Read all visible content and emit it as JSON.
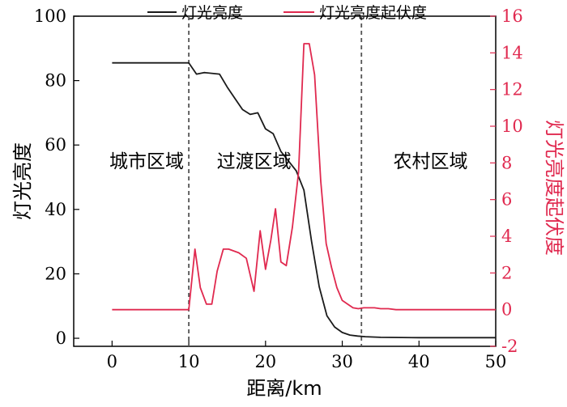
{
  "chart_data": {
    "type": "line",
    "xlabel": "距离/km",
    "ylabel_left": "灯光亮度",
    "ylabel_right": "灯光亮度起伏度",
    "xlim": [
      -5,
      50
    ],
    "ylim_left": [
      -2.5,
      100
    ],
    "ylim_right": [
      -2,
      16
    ],
    "x_ticks": [
      0,
      10,
      20,
      30,
      40,
      50
    ],
    "y_left_ticks": [
      0,
      20,
      40,
      60,
      80,
      100
    ],
    "y_right_ticks": [
      -2,
      0,
      2,
      4,
      6,
      8,
      10,
      12,
      14,
      16
    ],
    "legend": {
      "position": "top"
    },
    "colors": {
      "brightness": "#1a1a1a",
      "fluctuation": "#e0294f",
      "divider": "#555555"
    },
    "dividers": [
      10,
      32.5
    ],
    "regions": [
      {
        "label": "城市区域",
        "x": 4.5,
        "y": 55
      },
      {
        "label": "过渡区域",
        "x": 18.5,
        "y": 55
      },
      {
        "label": "农村区域",
        "x": 41.5,
        "y": 55
      }
    ],
    "series": [
      {
        "name": "灯光亮度",
        "axis": "left",
        "x": [
          0,
          10,
          11,
          12,
          14,
          15,
          16,
          17,
          18,
          19,
          20,
          21,
          22,
          23,
          24,
          25,
          26,
          27,
          28,
          29,
          30,
          31,
          32,
          33,
          35,
          40,
          45,
          50
        ],
        "y": [
          85.5,
          85.5,
          82,
          82.5,
          82,
          78,
          74.5,
          71,
          69.5,
          70,
          65,
          63.5,
          58,
          55,
          52,
          46,
          30,
          16,
          7,
          3.5,
          1.8,
          1,
          0.7,
          0.5,
          0.3,
          0.2,
          0.2,
          0.2
        ]
      },
      {
        "name": "灯光亮度起伏度",
        "axis": "right",
        "x": [
          0,
          10,
          10.8,
          11.5,
          12.3,
          13,
          13.7,
          14.5,
          15.2,
          16.5,
          17.5,
          18.5,
          19.3,
          20,
          20.7,
          21.3,
          22,
          22.7,
          23.5,
          24.3,
          25,
          25.7,
          26.4,
          27.2,
          27.9,
          28.6,
          29.3,
          30,
          30.7,
          31.4,
          32.1,
          32.8,
          33.5,
          34.2,
          35,
          36,
          37,
          40,
          45,
          50
        ],
        "y": [
          0,
          0,
          3.3,
          1.2,
          0.3,
          0.3,
          2.1,
          3.3,
          3.3,
          3.1,
          2.8,
          1.0,
          4.3,
          2.2,
          3.8,
          5.5,
          2.6,
          2.4,
          4.5,
          7.5,
          14.5,
          14.5,
          12.8,
          7.0,
          3.6,
          2.3,
          1.2,
          0.5,
          0.3,
          0.1,
          0.05,
          0.1,
          0.1,
          0.1,
          0.05,
          0.05,
          0.0,
          0.0,
          0.0,
          0.0
        ]
      }
    ]
  }
}
